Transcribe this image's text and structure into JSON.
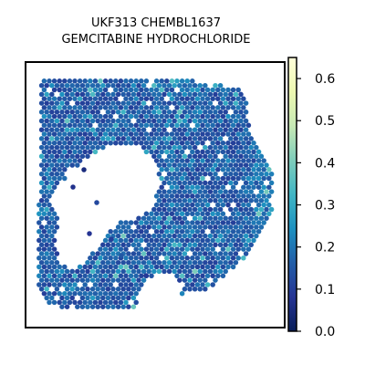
{
  "chart_data": {
    "type": "heatmap",
    "title_lines": [
      "UKF313 CHEMBL1637",
      "GEMCITABINE HYDROCHLORIDE"
    ],
    "xlabel": "",
    "ylabel": "",
    "grid": false,
    "colormap": "YlGnBu",
    "colormap_stops": [
      "#081d58",
      "#253494",
      "#225ea8",
      "#1d91c0",
      "#41b6c4",
      "#7fcdbb",
      "#c7e9b4",
      "#edf8b1",
      "#ffffd9"
    ],
    "colorbar": {
      "range": [
        0,
        0.65
      ],
      "ticks": [
        0.0,
        0.1,
        0.2,
        0.3,
        0.4,
        0.5,
        0.6
      ],
      "tick_labels": [
        "0.0",
        "0.1",
        "0.2",
        "0.3",
        "0.4",
        "0.5",
        "0.6"
      ]
    },
    "value_distribution": {
      "typical_range": [
        0.05,
        0.3
      ],
      "hotspots_at": "right edge and upper rim",
      "maximum": 0.6
    }
  }
}
